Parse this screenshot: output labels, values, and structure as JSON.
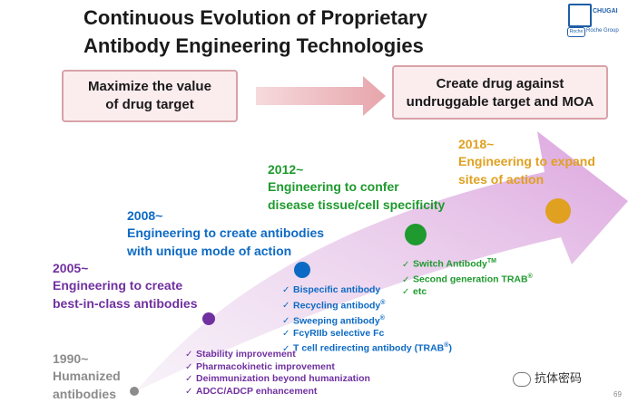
{
  "title": {
    "line1": "Continuous Evolution of Proprietary",
    "line2": "Antibody Engineering Technologies"
  },
  "logo": {
    "brand": "CHUGAI",
    "group": "Roche Group",
    "mark": "Roche"
  },
  "boxes": {
    "left": {
      "line1": "Maximize the value",
      "line2": "of drug target"
    },
    "right": {
      "line1": "Create drug against",
      "line2": "undruggable target and MOA"
    }
  },
  "colors": {
    "gray": "#8c8c8c",
    "purple": "#7030a0",
    "blue": "#0d6ac4",
    "green": "#1e9a2e",
    "orange": "#e0a020"
  },
  "eras": {
    "e1990": {
      "year": "1990~",
      "line1": "Humanized",
      "line2": "antibodies"
    },
    "e2005": {
      "year": "2005~",
      "line1": "Engineering to create",
      "line2": "best-in-class antibodies",
      "items": [
        "Stability improvement",
        "Pharmacokinetic improvement",
        "Deimmunization beyond humanization",
        "ADCC/ADCP enhancement"
      ]
    },
    "e2008": {
      "year": "2008~",
      "line1": "Engineering to create antibodies",
      "line2": "with unique mode of action",
      "items": [
        "Bispecific antibody",
        "Recycling antibody",
        "Sweeping antibody",
        "FcγRIIb selective Fc",
        "T cell redirecting antibody (TRAB"
      ],
      "marks": [
        "®",
        "®",
        "®"
      ]
    },
    "e2012": {
      "year": "2012~",
      "line1": "Engineering to confer",
      "line2": "disease tissue/cell specificity",
      "items": [
        "Switch Antibody",
        "Second generation TRAB",
        "etc"
      ],
      "tm": "TM",
      "reg": "®"
    },
    "e2018": {
      "year": "2018~",
      "line1": "Engineering to expand",
      "line2": "sites of action"
    }
  },
  "watermark": "抗体密码",
  "page_num": "69"
}
